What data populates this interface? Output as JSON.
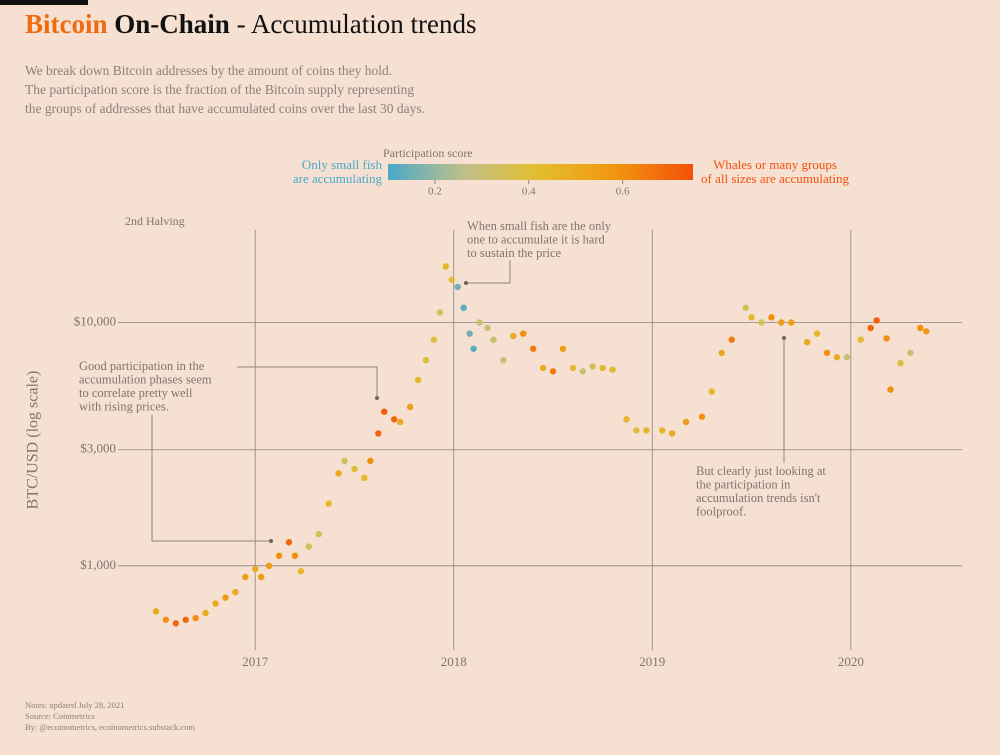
{
  "chart_data": {
    "type": "scatter",
    "title_parts": [
      "Bitcoin",
      "On-Chain",
      "- Accumulation trends"
    ],
    "subtitle": [
      "We break down Bitcoin addresses by the amount of coins they hold.",
      "The participation score is the fraction of the Bitcoin supply representing",
      "the groups of addresses that have accumulated coins over the last 30 days."
    ],
    "colorbar": {
      "title": "Participation score",
      "low_label": [
        "Only small fish",
        "are accumulating"
      ],
      "high_label": [
        "Whales or many groups",
        "of all sizes are accumulating"
      ],
      "range": [
        0.1,
        0.75
      ],
      "ticks": [
        0.2,
        0.4,
        0.6
      ],
      "colors": [
        "#4aa8c8",
        "#bfc089",
        "#e4bd2c",
        "#f1940f",
        "#f4500a"
      ]
    },
    "y_label": "BTC/USD (log scale)",
    "halving_label": "2nd Halving",
    "annotations": [
      [
        "When small fish are the only",
        "one to accumulate it is hard",
        "to sustain the price"
      ],
      [
        "Good participation in the",
        "accumulation phases seem",
        "to correlate pretty well",
        "with rising prices."
      ],
      [
        "But clearly just looking at",
        "the participation in",
        "accumulation trends isn't",
        "foolproof."
      ]
    ],
    "notes": [
      "Notes: updated July 28, 2021",
      "Source: Coinmetrics",
      "By: @ecoinometrics, ecoinometrics.substack.com"
    ],
    "log_y": true,
    "xlim": [
      2016.47,
      2020.56
    ],
    "xticks": [
      2017,
      2018,
      2019,
      2020
    ],
    "ylim": [
      430,
      24000
    ],
    "yticks": [
      {
        "value": 1000,
        "label": "$1,000"
      },
      {
        "value": 3000,
        "label": "$3,000"
      },
      {
        "value": 10000,
        "label": "$10,000"
      }
    ],
    "x": [
      2016.5,
      2016.55,
      2016.6,
      2016.65,
      2016.7,
      2016.75,
      2016.8,
      2016.85,
      2016.9,
      2016.95,
      2017.0,
      2017.03,
      2017.07,
      2017.12,
      2017.17,
      2017.2,
      2017.23,
      2017.27,
      2017.32,
      2017.37,
      2017.42,
      2017.45,
      2017.5,
      2017.55,
      2017.58,
      2017.62,
      2017.65,
      2017.7,
      2017.73,
      2017.78,
      2017.82,
      2017.86,
      2017.9,
      2017.93,
      2017.96,
      2017.99,
      2018.02,
      2018.05,
      2018.08,
      2018.1,
      2018.13,
      2018.17,
      2018.2,
      2018.25,
      2018.3,
      2018.35,
      2018.4,
      2018.45,
      2018.5,
      2018.55,
      2018.6,
      2018.65,
      2018.7,
      2018.75,
      2018.8,
      2018.87,
      2018.92,
      2018.97,
      2019.05,
      2019.1,
      2019.17,
      2019.25,
      2019.3,
      2019.35,
      2019.4,
      2019.47,
      2019.5,
      2019.55,
      2019.6,
      2019.65,
      2019.7,
      2019.78,
      2019.83,
      2019.88,
      2019.93,
      2019.98,
      2020.05,
      2020.1,
      2020.13,
      2020.18,
      2020.2,
      2020.25,
      2020.3,
      2020.35,
      2020.38
    ],
    "values": [
      650,
      600,
      580,
      600,
      610,
      640,
      700,
      740,
      780,
      900,
      970,
      900,
      1000,
      1100,
      1250,
      1100,
      950,
      1200,
      1350,
      1800,
      2400,
      2700,
      2500,
      2300,
      2700,
      3500,
      4300,
      4000,
      3900,
      4500,
      5800,
      7000,
      8500,
      11000,
      17000,
      15000,
      14000,
      11500,
      9000,
      7800,
      10000,
      9500,
      8500,
      7000,
      8800,
      9000,
      7800,
      6500,
      6300,
      7800,
      6500,
      6300,
      6600,
      6500,
      6400,
      4000,
      3600,
      3600,
      3600,
      3500,
      3900,
      4100,
      5200,
      7500,
      8500,
      11500,
      10500,
      10000,
      10500,
      10000,
      10000,
      8300,
      9000,
      7500,
      7200,
      7200,
      8500,
      9500,
      10200,
      8600,
      5300,
      6800,
      7500,
      9500,
      9200
    ],
    "scores": [
      0.5,
      0.6,
      0.7,
      0.7,
      0.6,
      0.5,
      0.5,
      0.55,
      0.5,
      0.55,
      0.5,
      0.55,
      0.55,
      0.6,
      0.7,
      0.6,
      0.45,
      0.35,
      0.35,
      0.45,
      0.5,
      0.35,
      0.4,
      0.45,
      0.6,
      0.7,
      0.72,
      0.7,
      0.5,
      0.55,
      0.45,
      0.4,
      0.38,
      0.35,
      0.45,
      0.4,
      0.15,
      0.12,
      0.15,
      0.12,
      0.3,
      0.3,
      0.3,
      0.3,
      0.5,
      0.6,
      0.65,
      0.5,
      0.65,
      0.55,
      0.45,
      0.3,
      0.35,
      0.45,
      0.45,
      0.45,
      0.4,
      0.45,
      0.45,
      0.5,
      0.55,
      0.6,
      0.45,
      0.5,
      0.65,
      0.35,
      0.45,
      0.35,
      0.6,
      0.55,
      0.55,
      0.5,
      0.45,
      0.6,
      0.5,
      0.3,
      0.4,
      0.7,
      0.72,
      0.6,
      0.6,
      0.4,
      0.3,
      0.6,
      0.55
    ]
  }
}
